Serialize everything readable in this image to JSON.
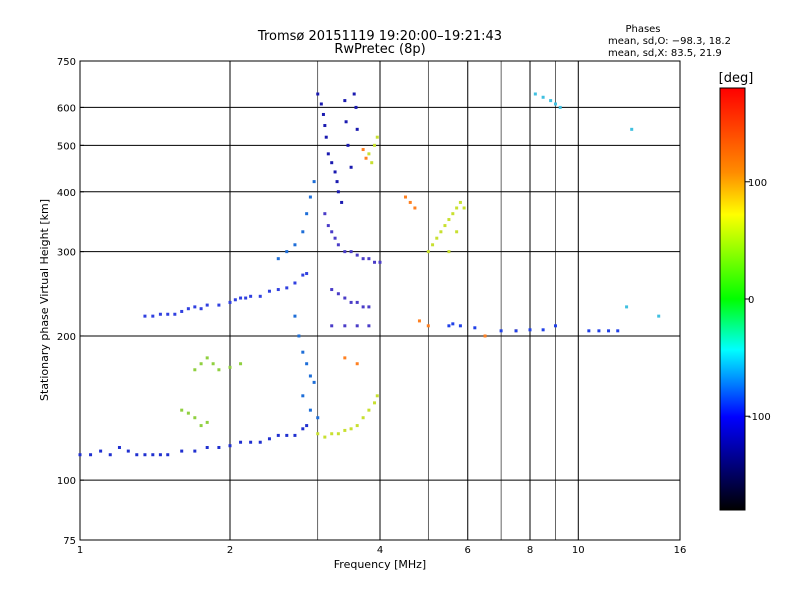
{
  "chart_data": {
    "type": "scatter",
    "title": "Tromsø 20151119 19:20:00–19:21:43",
    "subtitle": "RwPretec (8p)",
    "xlabel": "Frequency [MHz]",
    "ylabel": "Stationary phase Virtual Height [km]",
    "x_scale": "log",
    "y_scale": "log",
    "xlim": [
      1,
      16
    ],
    "ylim": [
      75,
      750
    ],
    "grid": true,
    "x_ticks": [
      1,
      2,
      4,
      6,
      8,
      10,
      16
    ],
    "y_ticks": [
      75,
      100,
      200,
      300,
      400,
      500,
      600,
      750
    ],
    "stats": {
      "title": "Phases",
      "line_o": "mean, sd,O: −98.3, 18.2",
      "line_x": "mean, sd,X:  83.5, 21.9"
    },
    "colorbar": {
      "label": "[deg]",
      "range": [
        -180,
        180
      ],
      "ticks": [
        100,
        0,
        -100
      ],
      "colors": [
        "#ff0000",
        "#ff8c00",
        "#ffff00",
        "#00ff00",
        "#00ffff",
        "#0000ff",
        "#000000"
      ]
    },
    "series": [
      {
        "color": "#2030d0",
        "points": [
          [
            1.0,
            113
          ],
          [
            1.05,
            113
          ],
          [
            1.1,
            115
          ],
          [
            1.15,
            113
          ],
          [
            1.2,
            117
          ],
          [
            1.25,
            115
          ],
          [
            1.3,
            113
          ],
          [
            1.35,
            113
          ],
          [
            1.4,
            113
          ],
          [
            1.45,
            113
          ],
          [
            1.5,
            113
          ],
          [
            1.6,
            115
          ],
          [
            1.7,
            115
          ],
          [
            1.8,
            117
          ],
          [
            1.9,
            117
          ],
          [
            2.0,
            118
          ],
          [
            2.1,
            120
          ],
          [
            2.2,
            120
          ],
          [
            2.3,
            120
          ],
          [
            2.4,
            122
          ],
          [
            2.5,
            124
          ],
          [
            2.6,
            124
          ],
          [
            2.7,
            124
          ],
          [
            2.8,
            128
          ],
          [
            2.85,
            130
          ]
        ]
      },
      {
        "color": "#3040e0",
        "points": [
          [
            1.35,
            220
          ],
          [
            1.4,
            220
          ],
          [
            1.45,
            222
          ],
          [
            1.5,
            222
          ],
          [
            1.55,
            222
          ],
          [
            1.6,
            225
          ],
          [
            1.65,
            228
          ],
          [
            1.7,
            230
          ],
          [
            1.75,
            228
          ],
          [
            1.8,
            232
          ],
          [
            1.9,
            232
          ],
          [
            2.0,
            235
          ],
          [
            2.05,
            238
          ],
          [
            2.1,
            240
          ],
          [
            2.15,
            240
          ],
          [
            2.2,
            242
          ],
          [
            2.3,
            242
          ],
          [
            2.4,
            248
          ],
          [
            2.5,
            250
          ],
          [
            2.6,
            252
          ],
          [
            2.7,
            258
          ],
          [
            2.8,
            268
          ],
          [
            2.85,
            270
          ]
        ]
      },
      {
        "color": "#1a1ab0",
        "points": [
          [
            3.0,
            640
          ],
          [
            3.05,
            610
          ],
          [
            3.08,
            580
          ],
          [
            3.1,
            550
          ],
          [
            3.12,
            520
          ],
          [
            3.15,
            480
          ],
          [
            3.2,
            460
          ],
          [
            3.25,
            440
          ],
          [
            3.28,
            420
          ],
          [
            3.3,
            400
          ],
          [
            3.35,
            380
          ],
          [
            3.4,
            620
          ],
          [
            3.42,
            560
          ],
          [
            3.45,
            500
          ],
          [
            3.5,
            450
          ],
          [
            3.55,
            640
          ],
          [
            3.58,
            600
          ],
          [
            3.6,
            540
          ]
        ]
      },
      {
        "color": "#4a3cc8",
        "points": [
          [
            3.1,
            360
          ],
          [
            3.15,
            340
          ],
          [
            3.2,
            330
          ],
          [
            3.25,
            320
          ],
          [
            3.3,
            310
          ],
          [
            3.4,
            300
          ],
          [
            3.5,
            300
          ],
          [
            3.6,
            295
          ],
          [
            3.7,
            290
          ],
          [
            3.8,
            290
          ],
          [
            3.9,
            285
          ],
          [
            4.0,
            285
          ],
          [
            3.2,
            250
          ],
          [
            3.3,
            245
          ],
          [
            3.4,
            240
          ],
          [
            3.5,
            235
          ],
          [
            3.6,
            235
          ],
          [
            3.7,
            230
          ],
          [
            3.8,
            230
          ],
          [
            3.2,
            210
          ],
          [
            3.4,
            210
          ],
          [
            3.6,
            210
          ],
          [
            3.8,
            210
          ]
        ]
      },
      {
        "color": "#1e6ed8",
        "points": [
          [
            2.5,
            290
          ],
          [
            2.6,
            300
          ],
          [
            2.7,
            310
          ],
          [
            2.8,
            330
          ],
          [
            2.85,
            360
          ],
          [
            2.9,
            390
          ],
          [
            2.95,
            420
          ],
          [
            2.7,
            220
          ],
          [
            2.75,
            200
          ],
          [
            2.8,
            185
          ],
          [
            2.85,
            175
          ],
          [
            2.9,
            165
          ],
          [
            2.95,
            160
          ],
          [
            2.8,
            150
          ],
          [
            2.9,
            140
          ],
          [
            3.0,
            135
          ]
        ]
      },
      {
        "color": "#c8e030",
        "points": [
          [
            3.0,
            125
          ],
          [
            3.1,
            123
          ],
          [
            3.2,
            125
          ],
          [
            3.3,
            125
          ],
          [
            3.4,
            127
          ],
          [
            3.5,
            128
          ],
          [
            3.6,
            130
          ],
          [
            3.7,
            135
          ],
          [
            3.8,
            140
          ],
          [
            3.9,
            145
          ],
          [
            3.95,
            150
          ],
          [
            3.8,
            480
          ],
          [
            3.85,
            460
          ],
          [
            3.9,
            500
          ],
          [
            3.95,
            520
          ],
          [
            5.0,
            300
          ],
          [
            5.1,
            310
          ],
          [
            5.2,
            320
          ],
          [
            5.3,
            330
          ],
          [
            5.4,
            340
          ],
          [
            5.5,
            350
          ],
          [
            5.6,
            360
          ],
          [
            5.7,
            370
          ],
          [
            5.8,
            380
          ],
          [
            5.9,
            370
          ],
          [
            5.5,
            300
          ],
          [
            5.7,
            330
          ]
        ]
      },
      {
        "color": "#90d040",
        "points": [
          [
            1.7,
            170
          ],
          [
            1.75,
            175
          ],
          [
            1.8,
            180
          ],
          [
            1.85,
            175
          ],
          [
            1.9,
            170
          ],
          [
            2.0,
            172
          ],
          [
            2.1,
            175
          ],
          [
            1.6,
            140
          ],
          [
            1.65,
            138
          ],
          [
            1.7,
            135
          ],
          [
            1.75,
            130
          ],
          [
            1.8,
            132
          ]
        ]
      },
      {
        "color": "#ff8020",
        "points": [
          [
            3.7,
            490
          ],
          [
            3.75,
            470
          ],
          [
            4.5,
            390
          ],
          [
            4.6,
            380
          ],
          [
            4.7,
            370
          ],
          [
            3.4,
            180
          ],
          [
            3.6,
            175
          ],
          [
            4.8,
            215
          ],
          [
            5.0,
            210
          ],
          [
            6.5,
            200
          ],
          [
            7.5,
            205
          ]
        ]
      },
      {
        "color": "#2040e8",
        "points": [
          [
            5.5,
            210
          ],
          [
            5.6,
            212
          ],
          [
            5.8,
            210
          ],
          [
            6.2,
            208
          ],
          [
            7.0,
            205
          ],
          [
            7.5,
            205
          ],
          [
            8.0,
            206
          ],
          [
            8.5,
            206
          ],
          [
            9.0,
            210
          ],
          [
            10.5,
            205
          ],
          [
            11.0,
            205
          ],
          [
            11.5,
            205
          ],
          [
            12.0,
            205
          ]
        ]
      },
      {
        "color": "#40c0e0",
        "points": [
          [
            8.2,
            640
          ],
          [
            8.5,
            630
          ],
          [
            8.8,
            620
          ],
          [
            9.0,
            610
          ],
          [
            9.2,
            600
          ],
          [
            12.8,
            540
          ],
          [
            12.5,
            230
          ],
          [
            14.5,
            220
          ]
        ]
      }
    ]
  }
}
